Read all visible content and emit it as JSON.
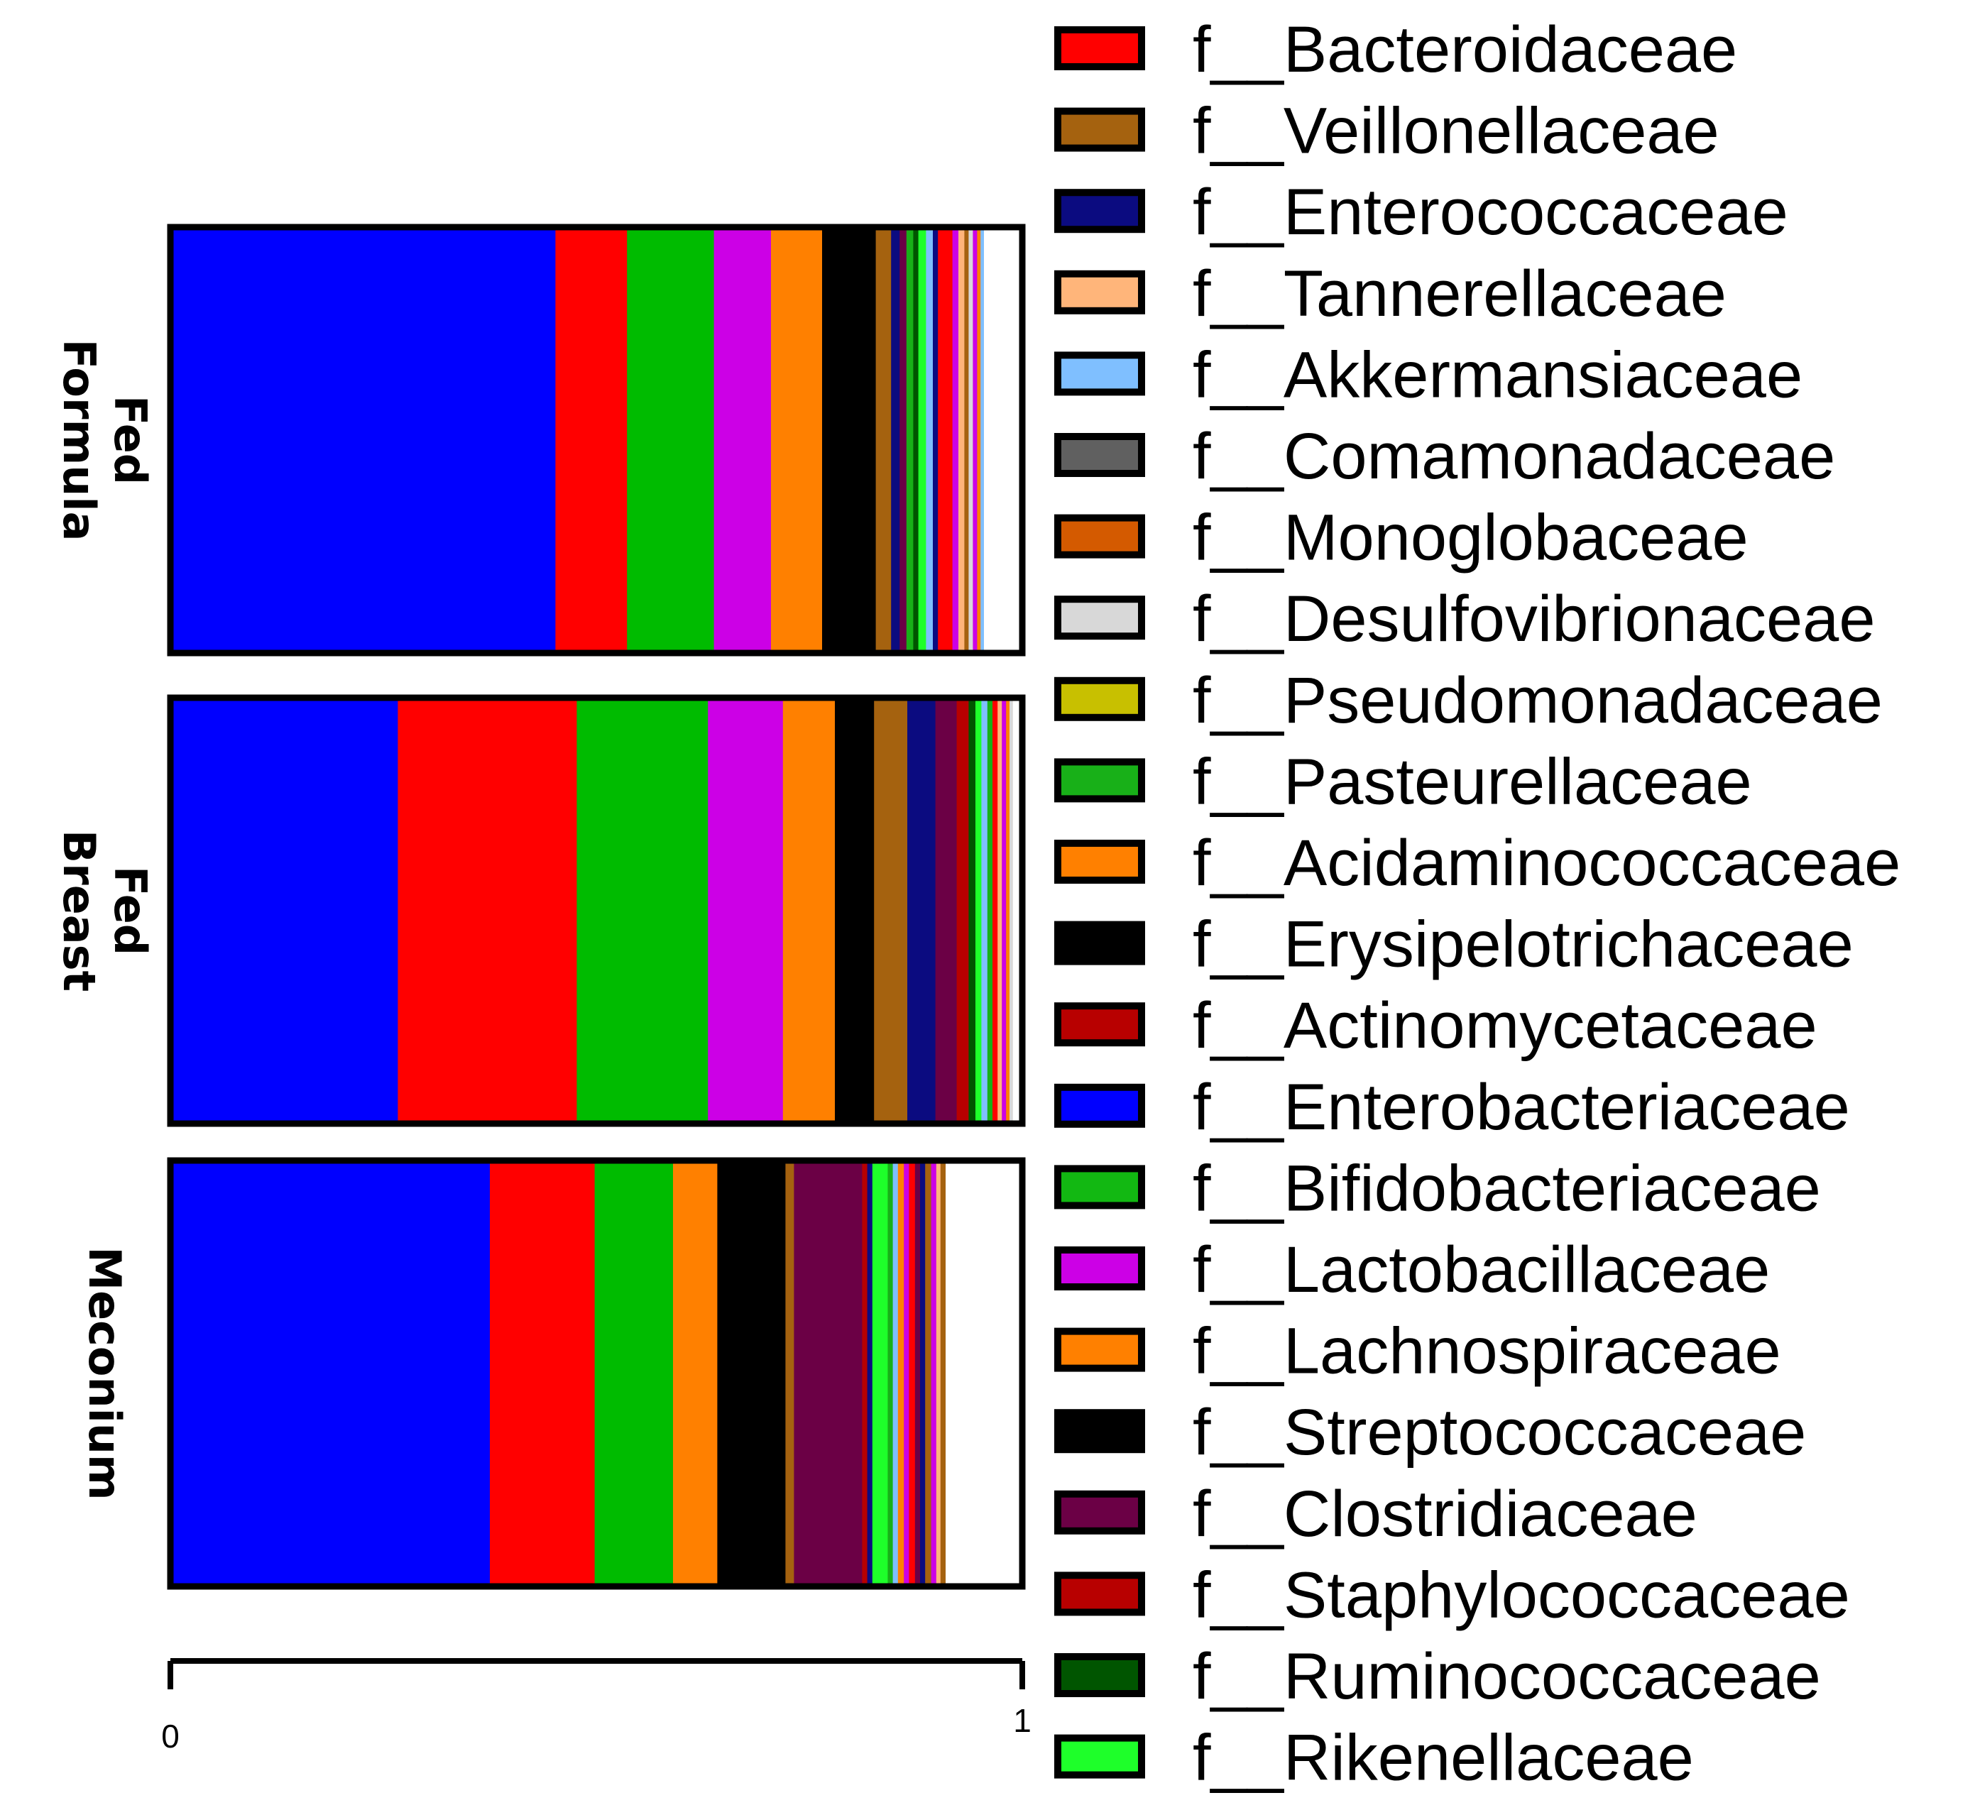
{
  "chart_data": {
    "type": "bar",
    "orientation": "horizontal",
    "stacked": true,
    "normalized": true,
    "categories": [
      "Formula Fed",
      "Breast Fed",
      "Meconium"
    ],
    "category_label_lines": [
      [
        "Formula",
        "Fed"
      ],
      [
        "Breast",
        "Fed"
      ],
      [
        "Meconium"
      ]
    ],
    "xlim": [
      0,
      1
    ],
    "x_ticks": [
      "0",
      "1"
    ],
    "legend_position": "right",
    "legend": [
      {
        "label": "f__Bacteroidaceae",
        "color": "#ff0000"
      },
      {
        "label": "f__Veillonellaceae",
        "color": "#a5620f"
      },
      {
        "label": "f__Enterococcaceae",
        "color": "#0b0b80"
      },
      {
        "label": "f__Tannerellaceae",
        "color": "#ffb57a"
      },
      {
        "label": "f__Akkermansiaceae",
        "color": "#7fbfff"
      },
      {
        "label": "f__Comamonadaceae",
        "color": "#606060"
      },
      {
        "label": "f__Monoglobaceae",
        "color": "#d45a00"
      },
      {
        "label": "f__Desulfovibrionaceae",
        "color": "#d8d8d8"
      },
      {
        "label": "f__Pseudomonadaceae",
        "color": "#c8c000"
      },
      {
        "label": "f__Pasteurellaceae",
        "color": "#18b018"
      },
      {
        "label": "f__Acidaminococcaceae",
        "color": "#ff8000"
      },
      {
        "label": "f__Erysipelotrichaceae",
        "color": "#000000"
      },
      {
        "label": "f__Actinomycetaceae",
        "color": "#b80000"
      },
      {
        "label": "f__Enterobacteriaceae",
        "color": "#0000ff"
      },
      {
        "label": "f__Bifidobacteriaceae",
        "color": "#12b812"
      },
      {
        "label": "f__Lactobacillaceae",
        "color": "#cc00e6"
      },
      {
        "label": "f__Lachnospiraceae",
        "color": "#ff8000"
      },
      {
        "label": "f__Streptococcaceae",
        "color": "#000000"
      },
      {
        "label": "f__Clostridiaceae",
        "color": "#6b0045"
      },
      {
        "label": "f__Staphylococcaceae",
        "color": "#b80000"
      },
      {
        "label": "f__Ruminococcaceae",
        "color": "#005500"
      },
      {
        "label": "f__Rikenellaceae",
        "color": "#1eff2a"
      }
    ],
    "bars": [
      {
        "category": "Formula Fed",
        "segments": [
          {
            "value": 0.452,
            "color": "#0000ff"
          },
          {
            "value": 0.084,
            "color": "#ff0000"
          },
          {
            "value": 0.102,
            "color": "#00bb00"
          },
          {
            "value": 0.067,
            "color": "#cc00e6"
          },
          {
            "value": 0.06,
            "color": "#ff8000"
          },
          {
            "value": 0.063,
            "color": "#000000"
          },
          {
            "value": 0.018,
            "color": "#a5620f"
          },
          {
            "value": 0.01,
            "color": "#0b0b80"
          },
          {
            "value": 0.008,
            "color": "#6b0045"
          },
          {
            "value": 0.008,
            "color": "#18b018"
          },
          {
            "value": 0.006,
            "color": "#005500"
          },
          {
            "value": 0.009,
            "color": "#1eff2a"
          },
          {
            "value": 0.008,
            "color": "#7fbfff"
          },
          {
            "value": 0.006,
            "color": "#0b0b80"
          },
          {
            "value": 0.017,
            "color": "#ff0000"
          },
          {
            "value": 0.007,
            "color": "#cc00e6"
          },
          {
            "value": 0.007,
            "color": "#ffb57a"
          },
          {
            "value": 0.005,
            "color": "#a5620f"
          },
          {
            "value": 0.005,
            "color": "#d8d8d8"
          },
          {
            "value": 0.005,
            "color": "#cc00e6"
          },
          {
            "value": 0.004,
            "color": "#ff8000"
          },
          {
            "value": 0.004,
            "color": "#7fbfff"
          },
          {
            "value": 0.035,
            "color": "#ffffff"
          }
        ]
      },
      {
        "category": "Breast Fed",
        "segments": [
          {
            "value": 0.267,
            "color": "#0000ff"
          },
          {
            "value": 0.21,
            "color": "#ff0000"
          },
          {
            "value": 0.154,
            "color": "#00bb00"
          },
          {
            "value": 0.088,
            "color": "#cc00e6"
          },
          {
            "value": 0.061,
            "color": "#ff8000"
          },
          {
            "value": 0.046,
            "color": "#000000"
          },
          {
            "value": 0.039,
            "color": "#a5620f"
          },
          {
            "value": 0.033,
            "color": "#0b0b80"
          },
          {
            "value": 0.025,
            "color": "#6b0045"
          },
          {
            "value": 0.014,
            "color": "#b80000"
          },
          {
            "value": 0.008,
            "color": "#005500"
          },
          {
            "value": 0.007,
            "color": "#1eff2a"
          },
          {
            "value": 0.007,
            "color": "#7fbfff"
          },
          {
            "value": 0.006,
            "color": "#18b018"
          },
          {
            "value": 0.006,
            "color": "#ff0000"
          },
          {
            "value": 0.005,
            "color": "#ffb57a"
          },
          {
            "value": 0.005,
            "color": "#cc00e6"
          },
          {
            "value": 0.004,
            "color": "#ff8000"
          },
          {
            "value": 0.004,
            "color": "#d8d8d8"
          },
          {
            "value": 0.011,
            "color": "#ffffff"
          }
        ]
      },
      {
        "category": "Meconium",
        "segments": [
          {
            "value": 0.375,
            "color": "#0000ff"
          },
          {
            "value": 0.123,
            "color": "#ff0000"
          },
          {
            "value": 0.092,
            "color": "#00bb00"
          },
          {
            "value": 0.052,
            "color": "#ff8000"
          },
          {
            "value": 0.08,
            "color": "#000000"
          },
          {
            "value": 0.01,
            "color": "#a5620f"
          },
          {
            "value": 0.08,
            "color": "#6b0045"
          },
          {
            "value": 0.006,
            "color": "#b80000"
          },
          {
            "value": 0.006,
            "color": "#0b0b80"
          },
          {
            "value": 0.018,
            "color": "#1eff2a"
          },
          {
            "value": 0.006,
            "color": "#18b018"
          },
          {
            "value": 0.006,
            "color": "#7fbfff"
          },
          {
            "value": 0.007,
            "color": "#ff8000"
          },
          {
            "value": 0.006,
            "color": "#cc00e6"
          },
          {
            "value": 0.007,
            "color": "#ff0000"
          },
          {
            "value": 0.006,
            "color": "#6b0045"
          },
          {
            "value": 0.006,
            "color": "#0b0b80"
          },
          {
            "value": 0.007,
            "color": "#a5620f"
          },
          {
            "value": 0.006,
            "color": "#cc00e6"
          },
          {
            "value": 0.005,
            "color": "#ffb57a"
          },
          {
            "value": 0.006,
            "color": "#a5620f"
          },
          {
            "value": 0.034,
            "color": "#ffffff"
          }
        ]
      }
    ]
  }
}
